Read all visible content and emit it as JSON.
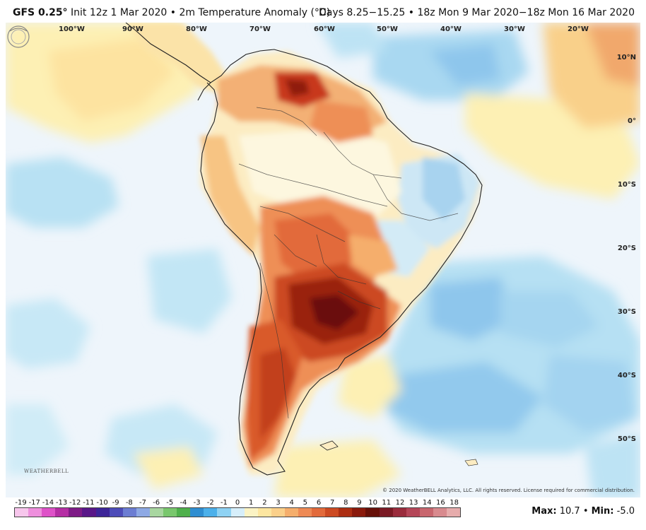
{
  "header": {
    "model": "GFS 0.25°",
    "init": "Init 12z 1 Mar 2020 • 2m Temperature Anomaly (°C)",
    "days": "Days 8.25−15.25 • 18z Mon 9 Mar 2020−18z Mon 16 Mar 2020"
  },
  "map": {
    "lon_labels": [
      "100°W",
      "90°W",
      "80°W",
      "70°W",
      "60°W",
      "50°W",
      "40°W",
      "30°W",
      "20°W"
    ],
    "lat_labels": [
      "10°N",
      "0°",
      "10°S",
      "20°S",
      "30°S",
      "40°S",
      "50°S"
    ],
    "logo_text": "WEATHERBELL",
    "copyright": "© 2020 WeatherBELL Analytics, LLC. All rights reserved. License required for commercial distribution."
  },
  "colorbar": {
    "labels": [
      "-19",
      "-17",
      "-14",
      "-13",
      "-12",
      "-11",
      "-10",
      "-9",
      "-8",
      "-7",
      "-6",
      "-5",
      "-4",
      "-3",
      "-2",
      "-1",
      "0",
      "1",
      "2",
      "3",
      "4",
      "5",
      "6",
      "7",
      "8",
      "9",
      "10",
      "11",
      "12",
      "13",
      "14",
      "16",
      "18"
    ],
    "colors": [
      "#f7c6ec",
      "#ee8fdd",
      "#de52c8",
      "#b52ea4",
      "#7e1b86",
      "#591788",
      "#3d2598",
      "#4d4cb8",
      "#6c7dd2",
      "#8ea9e4",
      "#a8d6a0",
      "#79c76d",
      "#4fb04c",
      "#2f8ed1",
      "#4cb0ea",
      "#8fd2f3",
      "#d6eefa",
      "#fbf3c4",
      "#fde6a0",
      "#fbd08a",
      "#f5ae6c",
      "#ee8a55",
      "#e26a3b",
      "#cc4a22",
      "#ac2e12",
      "#8a1a0c",
      "#661008",
      "#7a1a24",
      "#9a2c3c",
      "#b44658",
      "#c8666e",
      "#d88a8e",
      "#e6acac"
    ],
    "max_label": "Max:",
    "max_value": "10.7",
    "min_label": "Min:",
    "min_value": "-5.0"
  }
}
